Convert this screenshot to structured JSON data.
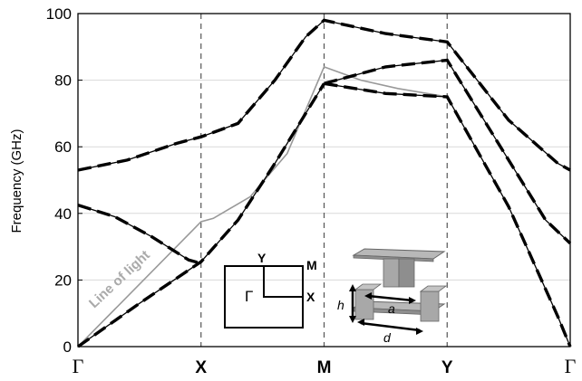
{
  "chart_data": {
    "type": "line",
    "ylabel": "Frequency (GHz)",
    "ylim": [
      0,
      100
    ],
    "yticks": [
      0,
      20,
      40,
      60,
      80,
      100
    ],
    "grid": "horizontal",
    "x_tick_labels": [
      "Γ",
      "X",
      "M",
      "Y",
      "Γ"
    ],
    "x_domain": [
      0,
      4
    ],
    "series": [
      {
        "name": "Line of light",
        "color": "#999999",
        "x": [
          0,
          1,
          1.1,
          1.4,
          1.7,
          2,
          2.3,
          2.6,
          3
        ],
        "y": [
          0,
          37.5,
          38.5,
          45,
          58,
          84,
          80,
          77.5,
          75
        ]
      },
      {
        "style": "dashed-solid",
        "x": [
          0,
          0.5,
          1,
          1.3,
          1.6,
          1.8,
          2
        ],
        "y": [
          0,
          13,
          25.5,
          38,
          55,
          67,
          79
        ]
      },
      {
        "style": "dashed-solid",
        "x": [
          0,
          0.3,
          0.6,
          0.9,
          1
        ],
        "y": [
          42.5,
          39,
          33,
          26,
          25
        ]
      },
      {
        "style": "dashed-solid",
        "x": [
          0,
          0.4,
          0.8,
          1,
          1.3,
          1.6,
          1.85,
          2,
          2.5,
          3,
          3.5,
          3.9,
          4
        ],
        "y": [
          53,
          56,
          61,
          63,
          67,
          80,
          93,
          98,
          94,
          91.5,
          68,
          55,
          53
        ]
      },
      {
        "style": "dashed-solid",
        "x": [
          2,
          2.5,
          3,
          3.5,
          3.9,
          4
        ],
        "y": [
          79,
          76,
          75,
          42,
          9,
          0
        ]
      },
      {
        "style": "dashed-solid",
        "x": [
          2,
          2.5,
          3,
          3.4,
          3.8,
          4
        ],
        "y": [
          79,
          84,
          86,
          62,
          38,
          31
        ]
      }
    ],
    "annotations": {
      "line_of_light_label": "Line of light",
      "inset_bz": {
        "y": "Y",
        "m": "M",
        "x": "X",
        "gamma": "Γ"
      },
      "inset_unit": {
        "h": "h",
        "a": "a",
        "d": "d"
      }
    }
  }
}
